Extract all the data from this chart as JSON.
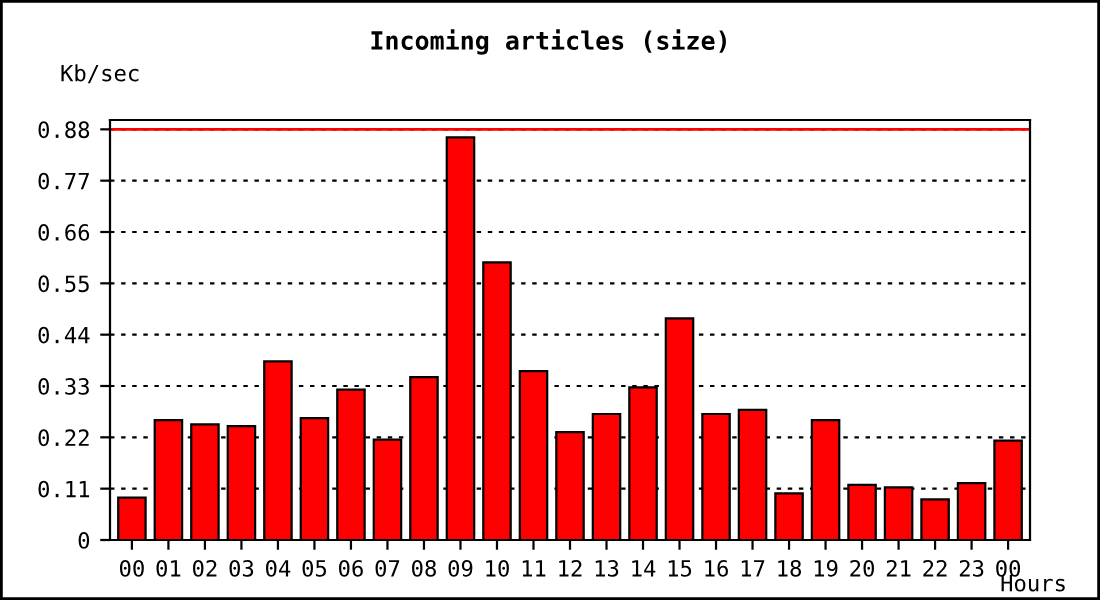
{
  "chart_data": {
    "type": "bar",
    "title": "Incoming articles (size)",
    "xlabel": "Hours",
    "ylabel": "Kb/sec",
    "categories": [
      "00",
      "01",
      "02",
      "03",
      "04",
      "05",
      "06",
      "07",
      "08",
      "09",
      "10",
      "11",
      "12",
      "13",
      "14",
      "15",
      "16",
      "17",
      "18",
      "19",
      "20",
      "21",
      "22",
      "23",
      "00"
    ],
    "series": [
      {
        "color": "#ff0000",
        "values": [
          0.091,
          0.257,
          0.248,
          0.244,
          0.383,
          0.261,
          0.322,
          0.215,
          0.349,
          0.863,
          0.595,
          0.362,
          0.231,
          0.27,
          0.327,
          0.475,
          0.27,
          0.279,
          0.1,
          0.257,
          0.118,
          0.113,
          0.087,
          0.122,
          0.213
        ]
      }
    ],
    "ylim": [
      0,
      0.9
    ],
    "yticks": [
      0,
      0.11,
      0.22,
      0.33,
      0.44,
      0.55,
      0.66,
      0.77,
      0.88
    ],
    "ref_lines": [
      {
        "axis": "y",
        "value": 0.88,
        "color": "#ff0000",
        "line_style": "solid"
      }
    ],
    "grid": "y",
    "legend": false
  }
}
